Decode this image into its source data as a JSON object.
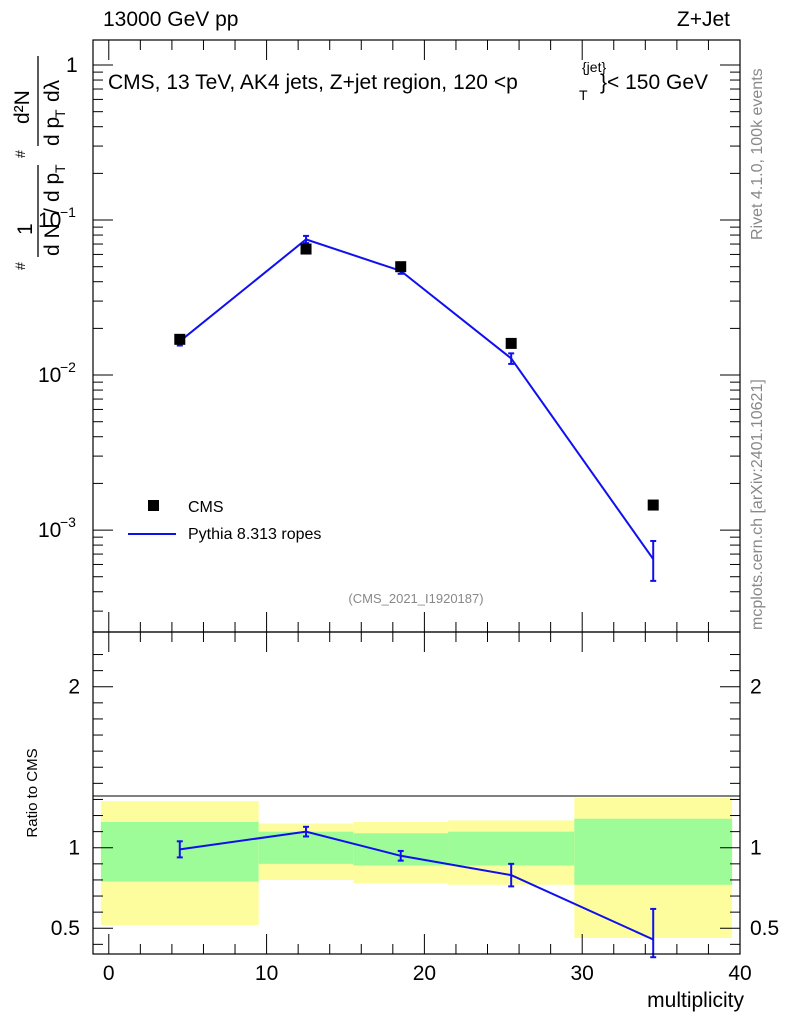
{
  "header": {
    "left": "13000 GeV pp",
    "right": "Z+Jet"
  },
  "side_labels": {
    "rivet": "Rivet 4.1.0,  100k events",
    "mcplots": "mcplots.cern.ch [arXiv:2401.10621]"
  },
  "y_axis_title": {
    "hash1": "#",
    "one": "1",
    "den_dn": "d N",
    "slash": "/",
    "den_dpt": "d p",
    "sub_T": "T",
    "hash2": "#",
    "d2n": "d²N",
    "dpt2": "d p",
    "dl": "dλ"
  },
  "colors": {
    "mc": "#1010ee",
    "band_inner": "#9efc98",
    "band_outer": "#fdfd9d",
    "data": "#000000",
    "watermark": "#888888"
  },
  "chart_data": [
    {
      "type": "scatter",
      "title": "CMS, 13 TeV, AK4 jets, Z+jet region, 120 <p_T^{jet}< 150 GeV",
      "title_parts": {
        "main": "CMS, 13 TeV, AK4 jets, Z+jet region, 120 <p",
        "sup": "{jet}",
        "sub": "T",
        "tail": "}< 150 GeV"
      },
      "analysis_id": "(CMS_2021_I1920187)",
      "xlabel": "multiplicity",
      "yscale": "log",
      "xlim": [
        -1,
        40
      ],
      "ylim": [
        0.00022,
        1.45
      ],
      "y_ticks": [
        {
          "v": 0.001,
          "base": "10",
          "exp": "−3"
        },
        {
          "v": 0.01,
          "base": "10",
          "exp": "−2"
        },
        {
          "v": 0.1,
          "base": "10",
          "exp": "−1"
        },
        {
          "v": 1,
          "base": "1",
          "exp": ""
        }
      ],
      "legend": {
        "position": "bottom-left",
        "entries": [
          "CMS",
          "Pythia 8.313 ropes"
        ]
      },
      "series": [
        {
          "name": "CMS",
          "marker": "square",
          "x": [
            4.5,
            12.5,
            18.5,
            25.5,
            34.5
          ],
          "y": [
            0.017,
            0.065,
            0.05,
            0.016,
            0.00145
          ]
        },
        {
          "name": "Pythia 8.313 ropes",
          "marker": "line",
          "x": [
            4.5,
            12.5,
            18.5,
            25.5,
            34.5
          ],
          "y": [
            0.0165,
            0.075,
            0.047,
            0.0128,
            0.00065
          ],
          "err_lo": [
            0.0155,
            0.071,
            0.045,
            0.0118,
            0.00047
          ],
          "err_hi": [
            0.0175,
            0.079,
            0.049,
            0.0138,
            0.00085
          ]
        }
      ]
    },
    {
      "type": "line",
      "ylabel": "Ratio to CMS",
      "xlabel": "multiplicity",
      "xlim": [
        -1,
        40
      ],
      "ylim": [
        0.34,
        2.34
      ],
      "x_ticks": [
        0,
        10,
        20,
        30,
        40
      ],
      "y_ticks_left": [
        "2",
        "1",
        "0.5"
      ],
      "y_ticks_right": [
        "2",
        "1",
        "0.5"
      ],
      "y_tick_values": [
        2,
        1,
        0.5
      ],
      "bands": [
        {
          "x0": -0.5,
          "x1": 9.5,
          "inner": [
            0.79,
            1.16
          ],
          "outer": [
            0.52,
            1.29
          ]
        },
        {
          "x0": 9.5,
          "x1": 15.5,
          "inner": [
            0.9,
            1.1
          ],
          "outer": [
            0.8,
            1.15
          ]
        },
        {
          "x0": 15.5,
          "x1": 21.5,
          "inner": [
            0.89,
            1.09
          ],
          "outer": [
            0.78,
            1.16
          ]
        },
        {
          "x0": 21.5,
          "x1": 29.5,
          "inner": [
            0.89,
            1.1
          ],
          "outer": [
            0.77,
            1.17
          ]
        },
        {
          "x0": 29.5,
          "x1": 39.5,
          "inner": [
            0.77,
            1.18
          ],
          "outer": [
            0.44,
            1.31
          ]
        }
      ],
      "series": [
        {
          "name": "Pythia 8.313 ropes",
          "x": [
            4.5,
            12.5,
            18.5,
            25.5,
            34.5
          ],
          "y": [
            0.99,
            1.1,
            0.95,
            0.83,
            0.43
          ],
          "err_lo": [
            0.94,
            1.07,
            0.92,
            0.76,
            0.32
          ],
          "err_hi": [
            1.04,
            1.13,
            0.98,
            0.9,
            0.62
          ]
        }
      ]
    }
  ]
}
